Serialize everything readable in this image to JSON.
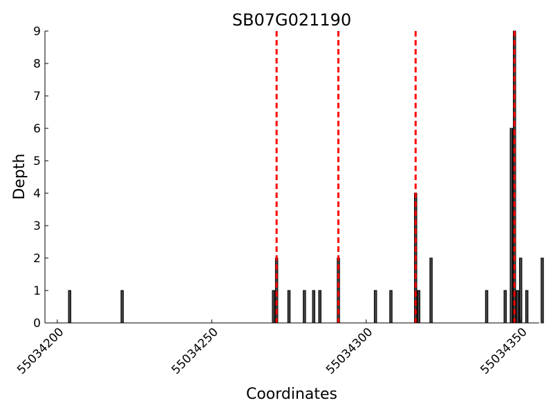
{
  "chart_data": {
    "type": "bar",
    "title": "SB07G021190",
    "xlabel": "Coordinates",
    "ylabel": "Depth",
    "xlim": [
      55034196,
      55034356
    ],
    "ylim": [
      0,
      9
    ],
    "x_ticks": [
      55034200,
      55034250,
      55034300,
      55034350
    ],
    "y_ticks": [
      0,
      1,
      2,
      3,
      4,
      5,
      6,
      7,
      8,
      9
    ],
    "x_tick_labels": [
      "55034200",
      "55034250",
      "55034300",
      "55034350"
    ],
    "y_tick_labels": [
      "0",
      "1",
      "2",
      "3",
      "4",
      "5",
      "6",
      "7",
      "8",
      "9"
    ],
    "bars": [
      {
        "x": 55034204,
        "y": 1
      },
      {
        "x": 55034221,
        "y": 1
      },
      {
        "x": 55034270,
        "y": 1
      },
      {
        "x": 55034271,
        "y": 2
      },
      {
        "x": 55034275,
        "y": 1
      },
      {
        "x": 55034280,
        "y": 1
      },
      {
        "x": 55034283,
        "y": 1
      },
      {
        "x": 55034285,
        "y": 1
      },
      {
        "x": 55034291,
        "y": 2
      },
      {
        "x": 55034303,
        "y": 1
      },
      {
        "x": 55034308,
        "y": 1
      },
      {
        "x": 55034316,
        "y": 4
      },
      {
        "x": 55034317,
        "y": 1
      },
      {
        "x": 55034321,
        "y": 2
      },
      {
        "x": 55034339,
        "y": 1
      },
      {
        "x": 55034345,
        "y": 1
      },
      {
        "x": 55034347,
        "y": 6
      },
      {
        "x": 55034348,
        "y": 9
      },
      {
        "x": 55034349,
        "y": 1
      },
      {
        "x": 55034350,
        "y": 2
      },
      {
        "x": 55034352,
        "y": 1
      },
      {
        "x": 55034357,
        "y": 2
      }
    ],
    "reference_lines_x": [
      55034271,
      55034291,
      55034316,
      55034348
    ],
    "bar_color": "#444444",
    "reference_line_color": "#ff0000",
    "grid": false,
    "legend": "none"
  }
}
